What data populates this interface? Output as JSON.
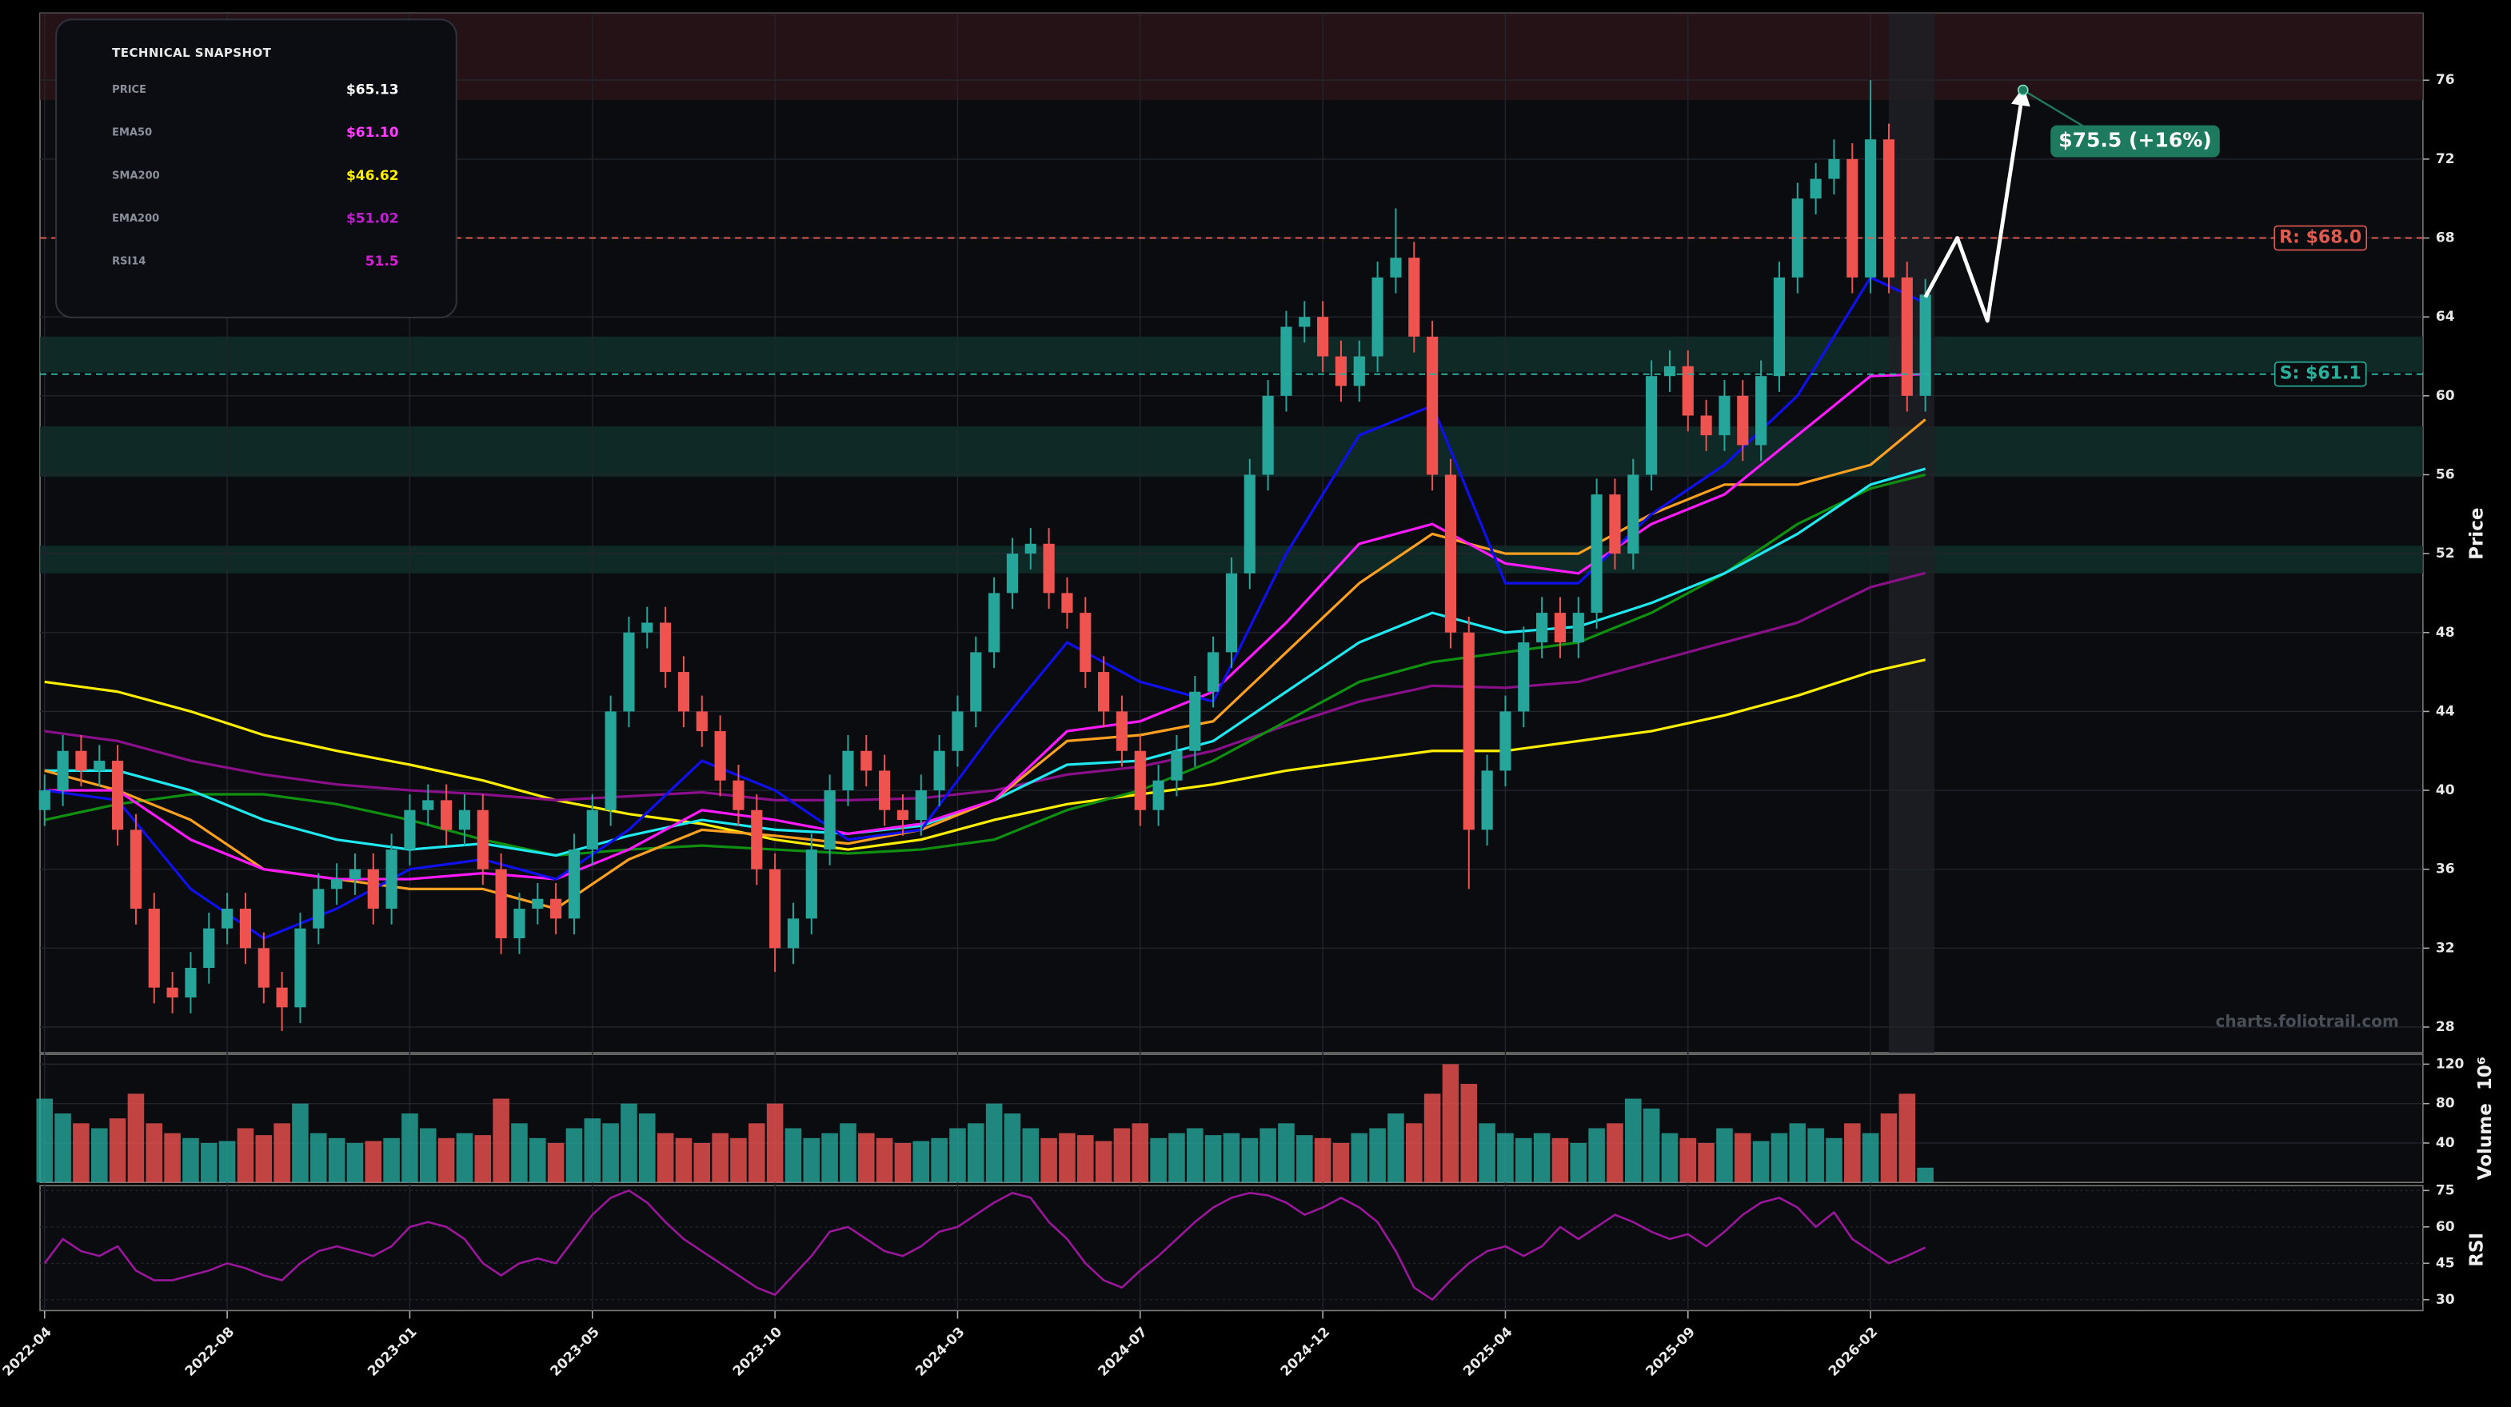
{
  "chart_data": {
    "type": "candlestick",
    "x": [
      0,
      2,
      4,
      6,
      8,
      10,
      12,
      14,
      16,
      18,
      20,
      22,
      24,
      26,
      28,
      30,
      32,
      34,
      36,
      38,
      40,
      42,
      44,
      46,
      48,
      50,
      52,
      54,
      56,
      58,
      60,
      62,
      64,
      66,
      68,
      70,
      72,
      74,
      76,
      78,
      80,
      82,
      84,
      86,
      88,
      90,
      92,
      94,
      96,
      98,
      100,
      102,
      104,
      106,
      108,
      110,
      112,
      114,
      116,
      118,
      120,
      122,
      124,
      126,
      128,
      130,
      132,
      134,
      136,
      138,
      140,
      142,
      144,
      146,
      148,
      150,
      152,
      154,
      156,
      158,
      160,
      162,
      164,
      166,
      168,
      170,
      172,
      174,
      176,
      178,
      180,
      182,
      184,
      186,
      188,
      190,
      192,
      194,
      196,
      198,
      200,
      202,
      204,
      206
    ],
    "open": [
      39,
      40,
      42,
      41,
      41.5,
      38,
      34,
      30,
      29.5,
      31,
      33,
      34,
      32,
      30,
      29,
      33,
      35,
      35.5,
      36,
      34,
      37,
      39,
      39.5,
      38,
      39,
      36,
      32.5,
      34,
      34.5,
      33.5,
      37,
      39,
      44,
      48,
      48.5,
      46,
      44,
      43,
      40.5,
      39,
      36,
      32,
      33.5,
      37,
      40,
      42,
      41,
      39,
      38.5,
      40,
      42,
      44,
      47,
      50,
      52,
      52.5,
      50,
      49,
      46,
      44,
      42,
      39,
      40.5,
      42,
      45,
      47,
      51,
      56,
      60,
      63.5,
      64,
      62,
      60.5,
      62,
      66,
      67,
      63,
      56,
      48,
      38,
      41,
      44,
      47.5,
      49,
      47.5,
      49,
      55,
      52,
      56,
      61,
      61.5,
      59,
      58,
      60,
      57.5,
      61,
      66,
      70,
      71,
      72,
      66,
      73,
      66,
      60
    ],
    "high": [
      40.8,
      42.8,
      42.8,
      42.3,
      42.3,
      38.8,
      34.8,
      30.8,
      31.8,
      33.8,
      34.8,
      34.8,
      32.8,
      30.8,
      33.8,
      35.8,
      36.3,
      36.8,
      36.8,
      37.8,
      39.8,
      40.3,
      40.3,
      39.8,
      39.8,
      36.8,
      34.8,
      35.3,
      35.3,
      37.8,
      39.8,
      44.8,
      48.8,
      49.3,
      49.3,
      46.8,
      44.8,
      43.8,
      41.3,
      39.8,
      36.8,
      34.3,
      37.8,
      40.8,
      42.8,
      42.8,
      41.8,
      39.8,
      40.8,
      42.8,
      44.8,
      47.8,
      50.8,
      52.8,
      53.3,
      53.3,
      50.8,
      49.8,
      46.8,
      44.8,
      42.8,
      41.3,
      42.8,
      45.8,
      47.8,
      51.8,
      56.8,
      60.8,
      64.3,
      64.8,
      64.8,
      62.8,
      62.8,
      66.8,
      69.5,
      67.8,
      63.8,
      56.8,
      48.8,
      41.8,
      44.8,
      48.3,
      49.8,
      49.8,
      49.8,
      55.8,
      55.8,
      56.8,
      61.8,
      62.3,
      62.3,
      59.8,
      60.8,
      60.8,
      61.8,
      66.8,
      70.8,
      71.8,
      73,
      72.8,
      76,
      73.8,
      66.8,
      65.93
    ],
    "low": [
      38.2,
      39.2,
      40.2,
      40.2,
      37.2,
      33.2,
      29.2,
      28.7,
      28.7,
      30.2,
      32.2,
      31.2,
      29.2,
      27.8,
      28.2,
      32.2,
      34.2,
      34.7,
      33.2,
      33.2,
      36.2,
      38.2,
      37.2,
      37.2,
      35.2,
      31.7,
      31.7,
      33.2,
      32.7,
      32.7,
      36.2,
      38.2,
      43.2,
      47.2,
      45.2,
      43.2,
      42.2,
      39.7,
      38.2,
      35.2,
      30.8,
      31.2,
      32.7,
      36.2,
      39.2,
      40.2,
      38.2,
      37.7,
      37.7,
      39.2,
      41.2,
      43.2,
      46.2,
      49.2,
      51.2,
      49.2,
      48.2,
      45.2,
      43.2,
      41.2,
      38.2,
      38.2,
      39.7,
      41.2,
      44.2,
      46.2,
      50.2,
      55.2,
      59.2,
      62.7,
      61.2,
      59.7,
      59.7,
      61.2,
      65.2,
      62.2,
      55.2,
      47.2,
      35,
      37.2,
      40.2,
      43.2,
      46.7,
      46.7,
      46.7,
      48.2,
      51.2,
      51.2,
      55.2,
      60.2,
      58.2,
      57.2,
      57.2,
      56.7,
      56.7,
      60.2,
      65.2,
      69.2,
      70.2,
      65.2,
      65.2,
      65.2,
      59.2,
      59.2
    ],
    "close": [
      40,
      42,
      41,
      41.5,
      38,
      34,
      30,
      29.5,
      31,
      33,
      34,
      32,
      30,
      29,
      33,
      35,
      35.5,
      36,
      34,
      37,
      39,
      39.5,
      38,
      39,
      36,
      32.5,
      34,
      34.5,
      33.5,
      37,
      39,
      44,
      48,
      48.5,
      46,
      44,
      43,
      40.5,
      39,
      36,
      32,
      33.5,
      37,
      40,
      42,
      41,
      39,
      38.5,
      40,
      42,
      44,
      47,
      50,
      52,
      52.5,
      50,
      49,
      46,
      44,
      42,
      39,
      40.5,
      42,
      45,
      47,
      51,
      56,
      60,
      63.5,
      64,
      62,
      60.5,
      62,
      66,
      67,
      63,
      56,
      48,
      38,
      41,
      44,
      47.5,
      49,
      47.5,
      49,
      55,
      52,
      56,
      61,
      61.5,
      59,
      58,
      60,
      57.5,
      61,
      66,
      70,
      71,
      72,
      66,
      73,
      66,
      60,
      65.13
    ],
    "up_color": "#26a69a",
    "down_color": "#ef5350",
    "xlim": [
      -0.5,
      260.5
    ],
    "xticks": [
      {
        "value": 0,
        "label": "2022-04"
      },
      {
        "value": 20,
        "label": "2022-08"
      },
      {
        "value": 40,
        "label": "2023-01"
      },
      {
        "value": 60,
        "label": "2023-05"
      },
      {
        "value": 80,
        "label": "2023-10"
      },
      {
        "value": 100,
        "label": "2024-03"
      },
      {
        "value": 120,
        "label": "2024-07"
      },
      {
        "value": 140,
        "label": "2024-12"
      },
      {
        "value": 160,
        "label": "2025-04"
      },
      {
        "value": 180,
        "label": "2025-09"
      },
      {
        "value": 200,
        "label": "2026-02"
      }
    ],
    "ylim": [
      26.7,
      79.4
    ],
    "yticks": [
      28,
      32,
      36,
      40,
      44,
      48,
      52,
      56,
      60,
      64,
      68,
      72,
      76
    ],
    "y_label": "Price",
    "grid": true,
    "lines": [
      {
        "color": "#ffee00",
        "x": [
          0,
          8,
          16,
          24,
          32,
          40,
          48,
          56,
          64,
          72,
          80,
          88,
          96,
          104,
          112,
          120,
          128,
          136,
          144,
          152,
          160,
          168,
          176,
          184,
          192,
          200,
          206
        ],
        "values": [
          45.5,
          45,
          44,
          42.8,
          42,
          41.3,
          40.5,
          39.5,
          38.8,
          38.3,
          37.5,
          37,
          37.5,
          38.5,
          39.3,
          39.8,
          40.3,
          41,
          41.5,
          42,
          42,
          42.5,
          43,
          43.8,
          44.8,
          46,
          46.62
        ]
      },
      {
        "color": "#8a108a",
        "x": [
          0,
          8,
          16,
          24,
          32,
          40,
          48,
          56,
          64,
          72,
          80,
          88,
          96,
          104,
          112,
          120,
          128,
          136,
          144,
          152,
          160,
          168,
          176,
          184,
          192,
          200,
          206
        ],
        "values": [
          43,
          42.5,
          41.5,
          40.8,
          40.3,
          40,
          39.8,
          39.5,
          39.7,
          39.9,
          39.5,
          39.5,
          39.6,
          40,
          40.8,
          41.2,
          42,
          43.3,
          44.5,
          45.3,
          45.2,
          45.5,
          46.5,
          47.5,
          48.5,
          50.3,
          51.02
        ]
      },
      {
        "color": "#109010",
        "x": [
          0,
          8,
          16,
          24,
          32,
          40,
          48,
          56,
          64,
          72,
          80,
          88,
          96,
          104,
          112,
          120,
          128,
          136,
          144,
          152,
          160,
          168,
          176,
          184,
          192,
          200,
          206
        ],
        "values": [
          38.5,
          39.3,
          39.8,
          39.8,
          39.3,
          38.5,
          37.5,
          36.7,
          37,
          37.2,
          37,
          36.8,
          37,
          37.5,
          39,
          40,
          41.5,
          43.5,
          45.5,
          46.5,
          47,
          47.5,
          49,
          51,
          53.5,
          55.3,
          56
        ]
      },
      {
        "color": "#20e8f0",
        "x": [
          0,
          8,
          16,
          24,
          32,
          40,
          48,
          56,
          64,
          72,
          80,
          88,
          96,
          104,
          112,
          120,
          128,
          136,
          144,
          152,
          160,
          168,
          176,
          184,
          192,
          200,
          206
        ],
        "values": [
          41,
          41,
          40,
          38.5,
          37.5,
          37,
          37.3,
          36.7,
          37.7,
          38.5,
          38,
          37.8,
          38.2,
          39.5,
          41.3,
          41.5,
          42.5,
          45,
          47.5,
          49,
          48,
          48.3,
          49.5,
          51,
          53,
          55.5,
          56.3
        ]
      },
      {
        "color": "#ffa020",
        "x": [
          0,
          8,
          16,
          24,
          32,
          40,
          48,
          56,
          64,
          72,
          80,
          88,
          96,
          104,
          112,
          120,
          128,
          136,
          144,
          152,
          160,
          168,
          176,
          184,
          192,
          200,
          206
        ],
        "values": [
          41,
          40,
          38.5,
          36,
          35.5,
          35,
          35,
          34,
          36.5,
          38,
          37.7,
          37.3,
          38,
          39.5,
          42.5,
          42.8,
          43.5,
          47,
          50.5,
          53,
          52,
          52,
          54,
          55.5,
          55.5,
          56.5,
          58.8
        ]
      },
      {
        "color": "#ff1aff",
        "x": [
          0,
          8,
          16,
          24,
          32,
          40,
          48,
          56,
          64,
          72,
          80,
          88,
          96,
          104,
          112,
          120,
          128,
          136,
          144,
          152,
          160,
          168,
          176,
          184,
          192,
          200,
          206
        ],
        "values": [
          40,
          40,
          37.5,
          36,
          35.5,
          35.5,
          35.8,
          35.5,
          37,
          39,
          38.5,
          37.8,
          38.3,
          39.5,
          43,
          43.5,
          45,
          48.5,
          52.5,
          53.5,
          51.5,
          51,
          53.5,
          55,
          58,
          61,
          61.1
        ]
      },
      {
        "color": "#1010ee",
        "x": [
          0,
          8,
          16,
          24,
          32,
          40,
          48,
          56,
          64,
          72,
          80,
          88,
          96,
          104,
          112,
          120,
          128,
          136,
          144,
          152,
          160,
          168,
          176,
          184,
          192,
          200,
          206
        ],
        "values": [
          40,
          39.5,
          35,
          32.5,
          34,
          36,
          36.5,
          35.5,
          38,
          41.5,
          40,
          37.5,
          38,
          43,
          47.5,
          45.5,
          44.5,
          52,
          58,
          59.5,
          50.5,
          50.5,
          54,
          56.5,
          60,
          66,
          64.7
        ]
      }
    ],
    "zones": [
      {
        "range": [
          75,
          79.4
        ],
        "color": "#2a1418"
      },
      {
        "range": [
          61.2,
          63
        ],
        "color": "#0f2f2a"
      },
      {
        "range": [
          55.9,
          58.45
        ],
        "color": "#0f2f2a"
      },
      {
        "range": [
          51,
          52.4
        ],
        "color": "#0f2f2a"
      }
    ],
    "highlight_x": [
      202,
      207
    ],
    "levels": [
      {
        "value": 68.0,
        "label": "R: $68.0",
        "color": "#e05a4f"
      },
      {
        "value": 61.1,
        "label": "S: $61.1",
        "color": "#2ab09a"
      }
    ],
    "projection": {
      "x": [
        206,
        209.5,
        212.8,
        216.7
      ],
      "values": [
        65,
        68,
        63.8,
        75.5
      ],
      "color": "#ffffff",
      "text": "$75.5 (+16%)",
      "label_color": "#1e7a5e"
    },
    "watermark": "charts.foliotrail.com",
    "volume": {
      "y_label": "Volume",
      "multiplier_label": "10⁶",
      "ylim": [
        0,
        130
      ],
      "yticks": [
        40,
        80,
        120
      ],
      "values": [
        85,
        70,
        60,
        55,
        65,
        90,
        60,
        50,
        45,
        40,
        42,
        55,
        48,
        60,
        80,
        50,
        45,
        40,
        42,
        45,
        70,
        55,
        45,
        50,
        48,
        85,
        60,
        45,
        40,
        55,
        65,
        60,
        80,
        70,
        50,
        45,
        40,
        50,
        45,
        60,
        80,
        55,
        45,
        50,
        60,
        50,
        45,
        40,
        42,
        45,
        55,
        60,
        80,
        70,
        55,
        45,
        50,
        48,
        42,
        55,
        60,
        45,
        50,
        55,
        48,
        50,
        45,
        55,
        60,
        48,
        45,
        40,
        50,
        55,
        70,
        60,
        90,
        120,
        100,
        60,
        50,
        45,
        50,
        45,
        40,
        55,
        60,
        85,
        75,
        50,
        45,
        40,
        55,
        50,
        42,
        50,
        60,
        55,
        45,
        60,
        50,
        70,
        90,
        15
      ]
    },
    "rsi": {
      "y_label": "RSI",
      "color": "#9a169a",
      "ylim": [
        25.5,
        77
      ],
      "yticks": [
        30,
        45,
        60,
        75
      ],
      "values": [
        45,
        55,
        50,
        48,
        52,
        42,
        38,
        38,
        40,
        42,
        45,
        43,
        40,
        38,
        45,
        50,
        52,
        50,
        48,
        52,
        60,
        62,
        60,
        55,
        45,
        40,
        45,
        47,
        45,
        55,
        65,
        72,
        75,
        70,
        62,
        55,
        50,
        45,
        40,
        35,
        32,
        40,
        48,
        58,
        60,
        55,
        50,
        48,
        52,
        58,
        60,
        65,
        70,
        74,
        72,
        62,
        55,
        45,
        38,
        35,
        42,
        48,
        55,
        62,
        68,
        72,
        74,
        73,
        70,
        65,
        68,
        72,
        68,
        62,
        50,
        35,
        30,
        38,
        45,
        50,
        52,
        48,
        52,
        60,
        55,
        60,
        65,
        62,
        58,
        55,
        57,
        52,
        58,
        65,
        70,
        72,
        68,
        60,
        66,
        55,
        50,
        45,
        48,
        51.5
      ]
    }
  },
  "snapshot": {
    "title": "TECHNICAL SNAPSHOT",
    "rows": [
      {
        "label": "PRICE",
        "value": "$65.13",
        "color": "#ffffff"
      },
      {
        "label": "EMA50",
        "value": "$61.10",
        "color": "#ff3cff"
      },
      {
        "label": "SMA200",
        "value": "$46.62",
        "color": "#ffee00"
      },
      {
        "label": "EMA200",
        "value": "$51.02",
        "color": "#c020d0"
      },
      {
        "label": "RSI14",
        "value": "51.5",
        "color": "#d020d0"
      }
    ]
  }
}
